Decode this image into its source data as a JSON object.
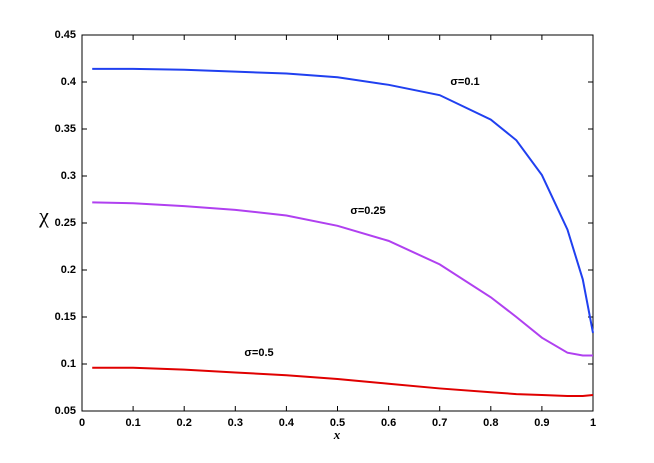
{
  "chart_data": {
    "type": "line",
    "x_label": "x",
    "y_label": "χ",
    "x": [
      0.02,
      0.1,
      0.2,
      0.3,
      0.4,
      0.5,
      0.6,
      0.7,
      0.8,
      0.85,
      0.9,
      0.95,
      0.98,
      1.0
    ],
    "series": [
      {
        "name": "σ=0.1",
        "color": "#2040f0",
        "values": [
          0.414,
          0.414,
          0.413,
          0.411,
          0.409,
          0.405,
          0.397,
          0.386,
          0.36,
          0.338,
          0.301,
          0.243,
          0.19,
          0.133
        ]
      },
      {
        "name": "σ=0.25",
        "color": "#b040f0",
        "values": [
          0.272,
          0.271,
          0.268,
          0.264,
          0.258,
          0.247,
          0.231,
          0.206,
          0.171,
          0.15,
          0.128,
          0.112,
          0.109,
          0.109
        ]
      },
      {
        "name": "σ=0.5",
        "color": "#e00000",
        "values": [
          0.096,
          0.096,
          0.094,
          0.091,
          0.088,
          0.084,
          0.079,
          0.074,
          0.07,
          0.068,
          0.067,
          0.066,
          0.066,
          0.067
        ]
      }
    ],
    "xlim": [
      0,
      1
    ],
    "xticks": [
      0,
      0.1,
      0.2,
      0.3,
      0.4,
      0.5,
      0.6,
      0.7,
      0.8,
      0.9,
      1
    ],
    "ylim": [
      0.05,
      0.45
    ],
    "yticks": [
      0.05,
      0.1,
      0.15,
      0.2,
      0.25,
      0.3,
      0.35,
      0.4,
      0.45
    ]
  }
}
